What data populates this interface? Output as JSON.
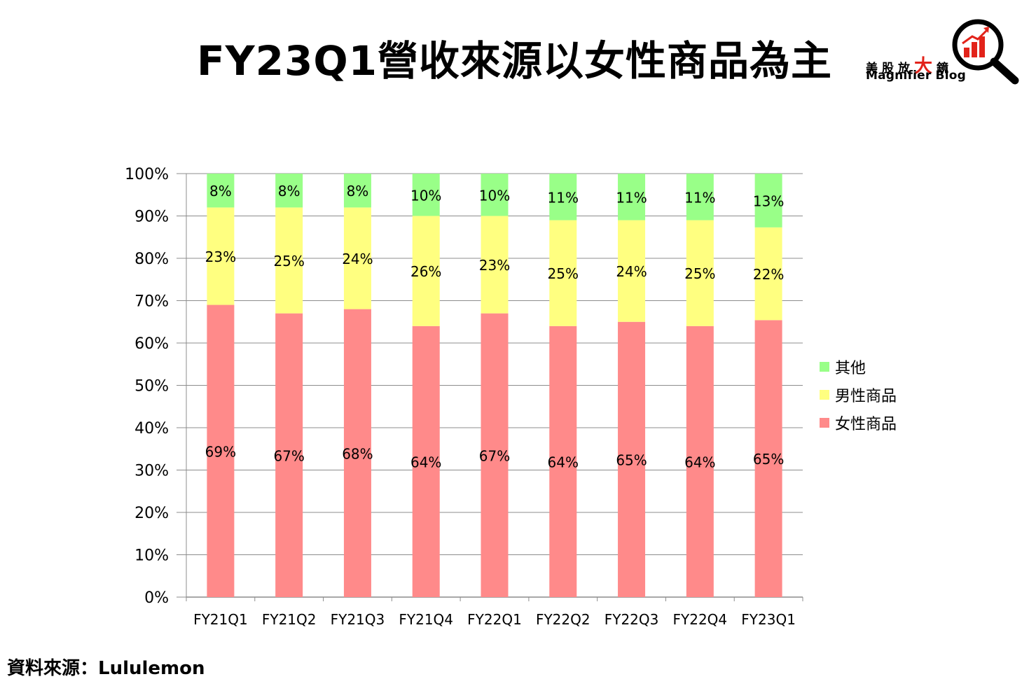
{
  "title": "FY23Q1營收來源以女性商品為主",
  "logo": {
    "cn_parts": [
      "美股放",
      "大",
      "鏡"
    ],
    "en": "Magnifier Blog"
  },
  "source": "資料來源：Lululemon",
  "chart_data": {
    "type": "bar",
    "stacked": true,
    "percent": true,
    "categories": [
      "FY21Q1",
      "FY21Q2",
      "FY21Q3",
      "FY21Q4",
      "FY22Q1",
      "FY22Q2",
      "FY22Q3",
      "FY22Q4",
      "FY23Q1"
    ],
    "series": [
      {
        "name": "女性商品",
        "color": "#ff8a8a",
        "values": [
          69,
          67,
          68,
          64,
          67,
          64,
          65,
          64,
          65.4
        ],
        "labels": [
          "69%",
          "67%",
          "68%",
          "64%",
          "67%",
          "64%",
          "65%",
          "64%",
          "65%"
        ]
      },
      {
        "name": "男性商品",
        "color": "#ffff80",
        "values": [
          23,
          25,
          24,
          26,
          23,
          25,
          24,
          25,
          21.9
        ],
        "labels": [
          "23%",
          "25%",
          "24%",
          "26%",
          "23%",
          "25%",
          "24%",
          "25%",
          "22%"
        ]
      },
      {
        "name": "其他",
        "color": "#99ff88",
        "values": [
          8,
          8,
          8,
          10,
          10,
          11,
          11,
          11,
          12.7
        ],
        "labels": [
          "8%",
          "8%",
          "8%",
          "10%",
          "10%",
          "11%",
          "11%",
          "11%",
          "13%"
        ]
      }
    ],
    "ylim": [
      0,
      100
    ],
    "yticks": [
      "0%",
      "10%",
      "20%",
      "30%",
      "40%",
      "50%",
      "60%",
      "70%",
      "80%",
      "90%",
      "100%"
    ],
    "grid": true,
    "legend_position": "right",
    "legend_order": [
      "其他",
      "男性商品",
      "女性商品"
    ]
  }
}
